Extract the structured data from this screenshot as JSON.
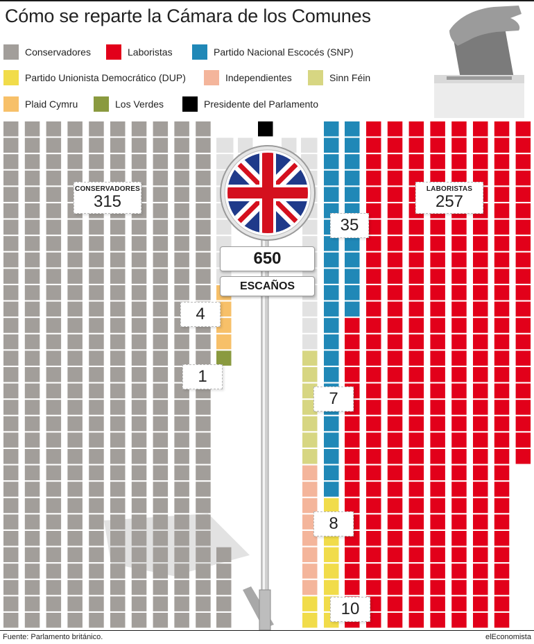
{
  "title": "Cómo se reparte la Cámara de los Comunes",
  "legend": [
    {
      "label": "Conservadores",
      "color": "#a29e9a"
    },
    {
      "label": "Laboristas",
      "color": "#e2001a"
    },
    {
      "label": "Partido Nacional Escocés (SNP)",
      "color": "#2088b7"
    },
    {
      "label": "Partido Unionista Democrático (DUP)",
      "color": "#f1dc4a"
    },
    {
      "label": "Independientes",
      "color": "#f4b59b"
    },
    {
      "label": "Sinn Féin",
      "color": "#d7d682"
    },
    {
      "label": "Plaid Cymru",
      "color": "#f7c069"
    },
    {
      "label": "Los Verdes",
      "color": "#8a9a3f"
    },
    {
      "label": "Presidente del Parlamento",
      "color": "#000000"
    }
  ],
  "labels": {
    "conservadores": {
      "name": "CONSERVADORES",
      "value": "315"
    },
    "laboristas": {
      "name": "LABORISTAS",
      "value": "257"
    },
    "snp": "35",
    "plaid": "4",
    "verdes": "1",
    "sinn_fein": "7",
    "independientes": "8",
    "dup": "10"
  },
  "sign": {
    "total": "650",
    "caption": "ESCAÑOS"
  },
  "footer": {
    "source": "Fuente: Parlamento británico.",
    "brand": "elEconomista"
  },
  "chart_data": {
    "type": "waffle",
    "total": 650,
    "series": [
      {
        "name": "Conservadores",
        "value": 315
      },
      {
        "name": "Laboristas",
        "value": 257
      },
      {
        "name": "Partido Nacional Escocés (SNP)",
        "value": 35
      },
      {
        "name": "Partido Unionista Democrático (DUP)",
        "value": 10
      },
      {
        "name": "Independientes",
        "value": 8
      },
      {
        "name": "Sinn Féin",
        "value": 7
      },
      {
        "name": "Plaid Cymru",
        "value": 4
      },
      {
        "name": "Los Verdes",
        "value": 1
      },
      {
        "name": "Presidente del Parlamento",
        "value": 1
      }
    ]
  }
}
